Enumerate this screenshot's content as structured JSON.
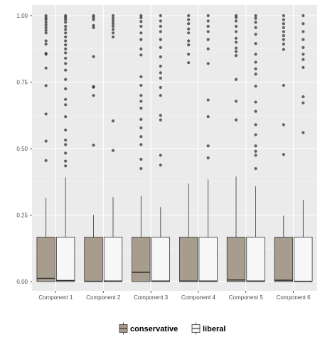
{
  "chart_data": {
    "type": "box",
    "title": "",
    "xlabel": "",
    "ylabel": "",
    "ylim": [
      0,
      1
    ],
    "y_ticks": [
      "0.00",
      "0.25",
      "0.50",
      "0.75",
      "1.00"
    ],
    "y_tick_values": [
      0,
      0.25,
      0.5,
      0.75,
      1.0
    ],
    "grid": true,
    "legend_position": "bottom",
    "categories": [
      "Component 1",
      "Component 2",
      "Component 3",
      "Component 4",
      "Component 5",
      "Component 6"
    ],
    "series": [
      {
        "name": "conservative",
        "color": "#A89C8E",
        "boxes": [
          {
            "q1": 0.0,
            "median": 0.012,
            "q3": 0.167,
            "whisker_low": 0.0,
            "whisker_high": 0.315,
            "outliers": [
              0.455,
              0.528,
              0.63,
              0.737,
              0.803,
              0.855,
              0.858,
              0.893,
              0.905,
              0.935,
              0.945,
              0.955,
              0.965,
              0.975,
              0.985,
              0.992,
              1.0
            ]
          },
          {
            "q1": 0.0,
            "median": 0.001,
            "q3": 0.167,
            "whisker_low": 0.0,
            "whisker_high": 0.251,
            "outliers": [
              0.513,
              0.7,
              0.731,
              0.733,
              0.846,
              0.955,
              0.963,
              0.985,
              0.993,
              1.0
            ]
          },
          {
            "q1": 0.0,
            "median": 0.035,
            "q3": 0.167,
            "whisker_low": 0.0,
            "whisker_high": 0.322,
            "outliers": [
              0.425,
              0.46,
              0.515,
              0.545,
              0.578,
              0.61,
              0.652,
              0.678,
              0.7,
              0.738,
              0.77,
              0.852,
              0.875,
              0.91,
              0.935,
              0.96,
              0.978,
              0.992,
              1.0
            ]
          },
          {
            "q1": 0.0,
            "median": 0.002,
            "q3": 0.167,
            "whisker_low": 0.0,
            "whisker_high": 0.368,
            "outliers": [
              0.823,
              0.855,
              0.89,
              0.905,
              0.935,
              0.95,
              0.97,
              0.985,
              1.0
            ]
          },
          {
            "q1": 0.0,
            "median": 0.006,
            "q3": 0.167,
            "whisker_low": 0.0,
            "whisker_high": 0.395,
            "outliers": [
              0.608,
              0.678,
              0.76,
              0.85,
              0.865,
              0.878,
              0.9,
              0.915,
              0.94,
              0.96,
              0.98,
              0.993,
              1.0
            ]
          },
          {
            "q1": 0.0,
            "median": 0.005,
            "q3": 0.167,
            "whisker_low": 0.0,
            "whisker_high": 0.248,
            "outliers": [
              0.478,
              0.59,
              0.738,
              0.873,
              0.893,
              0.91,
              0.925,
              0.94,
              0.955,
              0.97,
              0.985,
              1.0
            ]
          }
        ]
      },
      {
        "name": "liberal",
        "color": "#F7F7F7",
        "boxes": [
          {
            "q1": 0.0,
            "median": 0.004,
            "q3": 0.167,
            "whisker_low": 0.0,
            "whisker_high": 0.392,
            "outliers": [
              0.435,
              0.453,
              0.483,
              0.515,
              0.532,
              0.57,
              0.62,
              0.665,
              0.685,
              0.725,
              0.76,
              0.795,
              0.82,
              0.84,
              0.86,
              0.875,
              0.89,
              0.905,
              0.92,
              0.935,
              0.948,
              0.96,
              0.975,
              0.985,
              0.993,
              1.0
            ]
          },
          {
            "q1": 0.0,
            "median": 0.002,
            "q3": 0.167,
            "whisker_low": 0.0,
            "whisker_high": 0.318,
            "outliers": [
              0.493,
              0.604,
              0.92,
              0.935,
              0.948,
              0.96,
              0.97,
              0.98,
              0.99,
              1.0
            ]
          },
          {
            "q1": 0.0,
            "median": 0.002,
            "q3": 0.167,
            "whisker_low": 0.0,
            "whisker_high": 0.28,
            "outliers": [
              0.438,
              0.475,
              0.608,
              0.625,
              0.7,
              0.73,
              0.765,
              0.785,
              0.81,
              0.845,
              0.88,
              0.91,
              0.94,
              0.96,
              0.98,
              1.0
            ]
          },
          {
            "q1": 0.0,
            "median": 0.002,
            "q3": 0.167,
            "whisker_low": 0.0,
            "whisker_high": 0.384,
            "outliers": [
              0.465,
              0.51,
              0.62,
              0.683,
              0.82,
              0.875,
              0.91,
              0.94,
              0.96,
              0.98,
              1.0
            ]
          },
          {
            "q1": 0.0,
            "median": 0.002,
            "q3": 0.167,
            "whisker_low": 0.0,
            "whisker_high": 0.358,
            "outliers": [
              0.425,
              0.475,
              0.49,
              0.51,
              0.552,
              0.59,
              0.64,
              0.675,
              0.735,
              0.78,
              0.8,
              0.825,
              0.855,
              0.895,
              0.93,
              0.955,
              0.975,
              0.99,
              1.0
            ]
          },
          {
            "q1": 0.0,
            "median": 0.001,
            "q3": 0.167,
            "whisker_low": 0.0,
            "whisker_high": 0.307,
            "outliers": [
              0.56,
              0.672,
              0.695,
              0.805,
              0.835,
              0.855,
              0.88,
              0.91,
              0.94,
              0.97,
              1.0
            ]
          }
        ]
      }
    ]
  }
}
